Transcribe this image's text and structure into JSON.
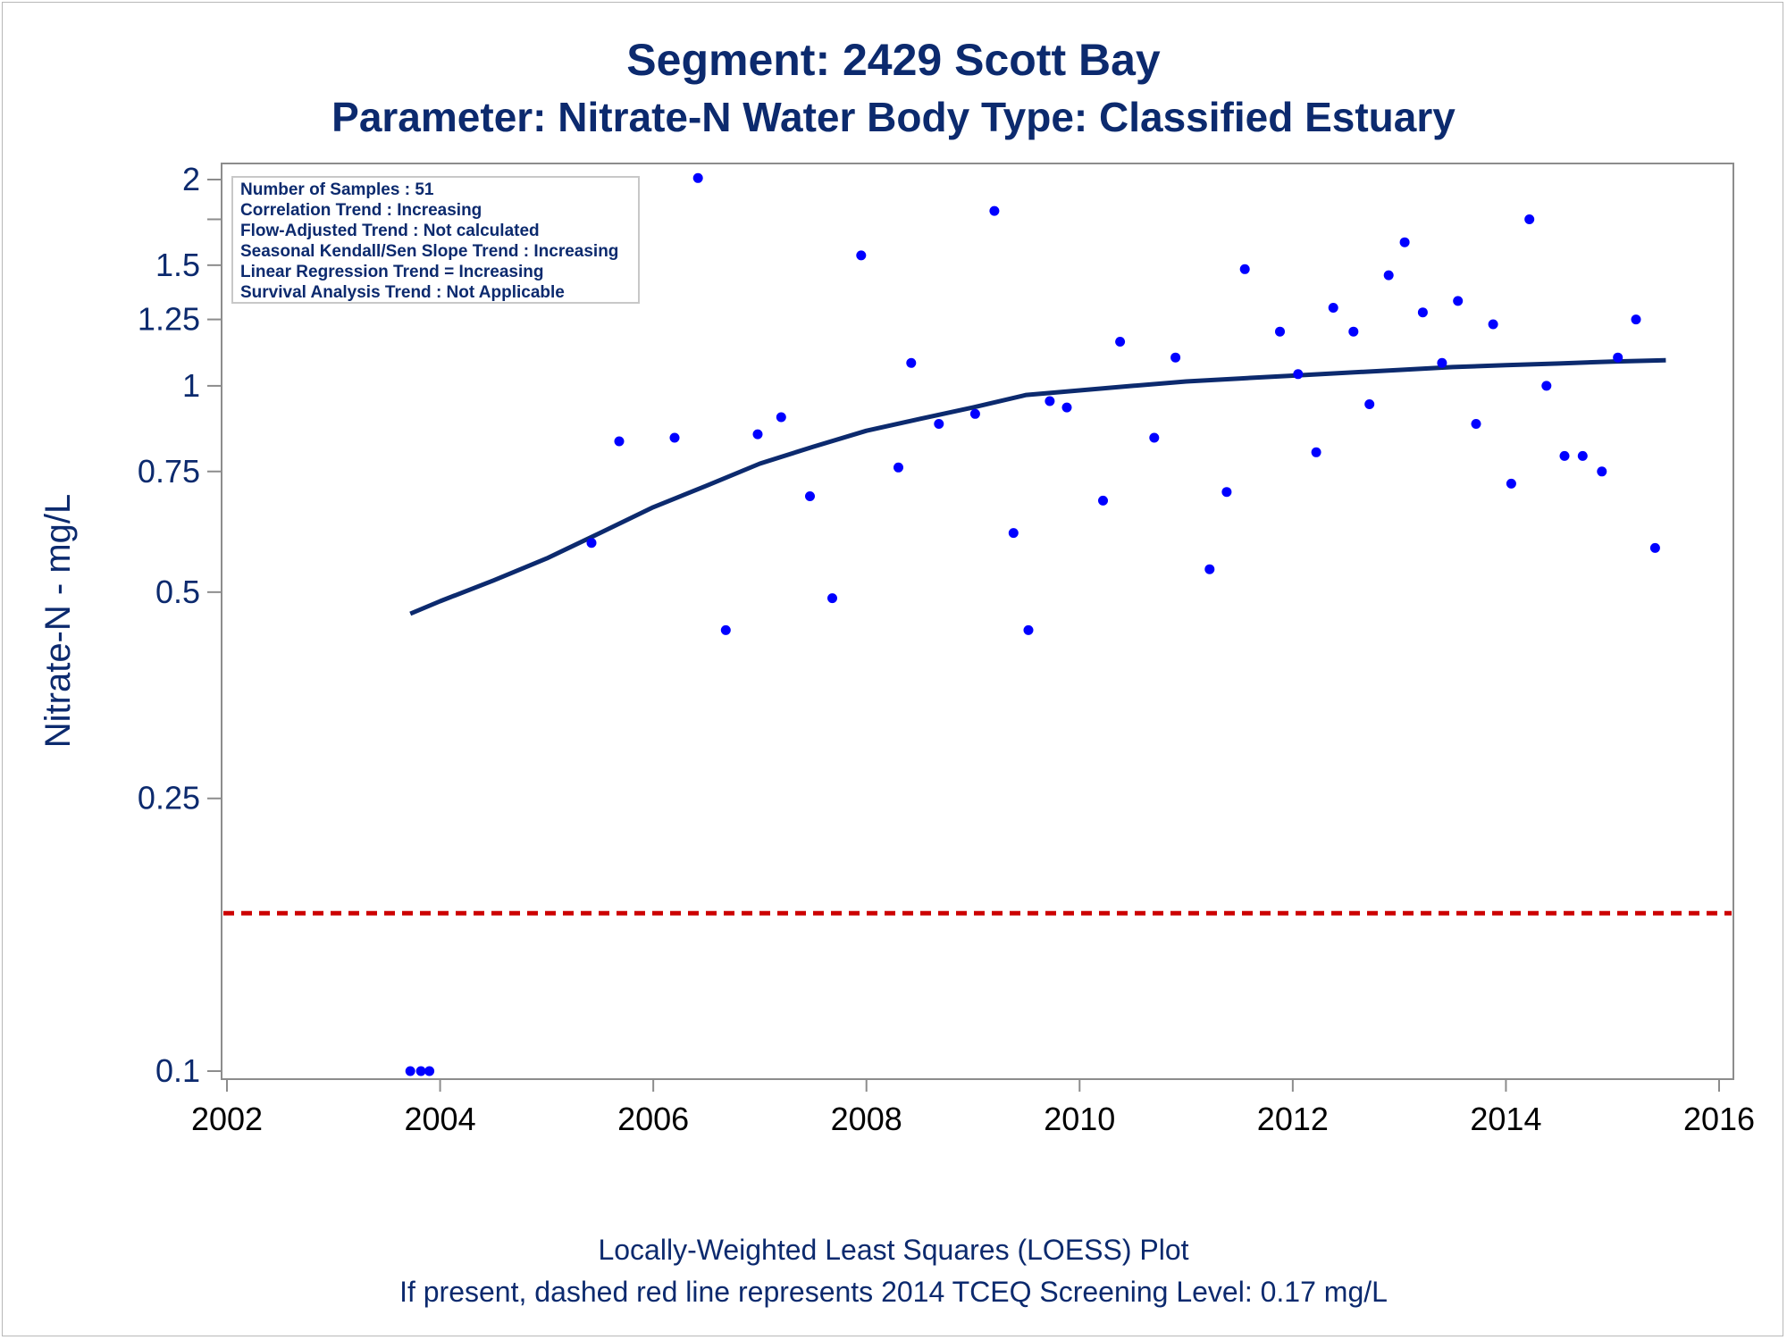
{
  "title": "Segment: 2429  Scott Bay",
  "subtitle": "Parameter: Nitrate-N   Water Body Type: Classified Estuary",
  "footnotes": [
    "Locally-Weighted Least Squares (LOESS) Plot",
    "If present, dashed red line represents 2014 TCEQ Screening Level: 0.17 mg/L"
  ],
  "info_box": [
    "Number of Samples : 51",
    "Correlation Trend : Increasing",
    "Flow-Adjusted Trend : Not calculated",
    "Seasonal Kendall/Sen Slope Trend : Increasing",
    "Linear Regression Trend = Increasing",
    "Survival Analysis Trend : Not Applicable"
  ],
  "colors": {
    "points": "#0000ff",
    "loess": "#0c2a6e",
    "screening_line": "#cc0000",
    "text": "#0c2a6e",
    "axis": "#8c8c8c"
  },
  "chart_data": {
    "type": "scatter",
    "title": "Segment: 2429  Scott Bay",
    "subtitle": "Parameter: Nitrate-N   Water Body Type: Classified Estuary",
    "ylabel": "Nitrate-N - mg/L",
    "xlabel": "",
    "y_scale": "log",
    "xlim": [
      2001.8,
      2016.0
    ],
    "ylim": [
      0.097,
      2.05
    ],
    "x_ticks": [
      2002,
      2004,
      2006,
      2008,
      2010,
      2012,
      2014,
      2016
    ],
    "y_ticks": [
      0.1,
      0.25,
      0.5,
      0.75,
      1,
      1.25,
      1.5,
      2
    ],
    "y_tick_labels": [
      "0.1",
      "0.25",
      "0.5",
      "0.75",
      "1",
      "1.25",
      "1.5",
      "2"
    ],
    "y_minor_ticks": [
      1.75
    ],
    "grid": false,
    "legend": "top-left info box",
    "samples": [
      [
        2003.72,
        0.1
      ],
      [
        2003.82,
        0.1
      ],
      [
        2003.9,
        0.1
      ],
      [
        2005.42,
        0.59
      ],
      [
        2005.68,
        0.83
      ],
      [
        2006.2,
        0.84
      ],
      [
        2006.42,
        2.01
      ],
      [
        2006.68,
        0.44
      ],
      [
        2006.98,
        0.85
      ],
      [
        2007.2,
        0.9
      ],
      [
        2007.47,
        0.69
      ],
      [
        2007.68,
        0.49
      ],
      [
        2007.95,
        1.55
      ],
      [
        2008.3,
        0.76
      ],
      [
        2008.42,
        1.08
      ],
      [
        2008.68,
        0.88
      ],
      [
        2009.02,
        0.91
      ],
      [
        2009.2,
        1.8
      ],
      [
        2009.38,
        0.61
      ],
      [
        2009.52,
        0.44
      ],
      [
        2009.72,
        0.95
      ],
      [
        2009.88,
        0.93
      ],
      [
        2010.22,
        0.68
      ],
      [
        2010.38,
        1.16
      ],
      [
        2010.7,
        0.84
      ],
      [
        2010.9,
        1.1
      ],
      [
        2011.22,
        0.54
      ],
      [
        2011.38,
        0.7
      ],
      [
        2011.55,
        1.48
      ],
      [
        2011.88,
        1.2
      ],
      [
        2012.05,
        1.04
      ],
      [
        2012.22,
        0.8
      ],
      [
        2012.38,
        1.3
      ],
      [
        2012.57,
        1.2
      ],
      [
        2012.72,
        0.94
      ],
      [
        2012.9,
        1.45
      ],
      [
        2013.05,
        1.62
      ],
      [
        2013.22,
        1.28
      ],
      [
        2013.4,
        1.08
      ],
      [
        2013.55,
        1.33
      ],
      [
        2013.72,
        0.88
      ],
      [
        2013.88,
        1.23
      ],
      [
        2014.05,
        0.72
      ],
      [
        2014.22,
        1.75
      ],
      [
        2014.38,
        1.0
      ],
      [
        2014.55,
        0.79
      ],
      [
        2014.72,
        0.79
      ],
      [
        2014.9,
        0.75
      ],
      [
        2015.05,
        1.1
      ],
      [
        2015.22,
        1.25
      ],
      [
        2015.4,
        0.58
      ]
    ],
    "loess_curve": [
      [
        2003.72,
        0.465
      ],
      [
        2004.0,
        0.485
      ],
      [
        2004.5,
        0.52
      ],
      [
        2005.0,
        0.56
      ],
      [
        2005.5,
        0.61
      ],
      [
        2006.0,
        0.665
      ],
      [
        2006.5,
        0.715
      ],
      [
        2007.0,
        0.77
      ],
      [
        2007.5,
        0.815
      ],
      [
        2008.0,
        0.86
      ],
      [
        2008.5,
        0.895
      ],
      [
        2009.0,
        0.93
      ],
      [
        2009.5,
        0.97
      ],
      [
        2010.0,
        0.985
      ],
      [
        2010.5,
        1.0
      ],
      [
        2011.0,
        1.015
      ],
      [
        2011.5,
        1.025
      ],
      [
        2012.0,
        1.035
      ],
      [
        2012.5,
        1.045
      ],
      [
        2013.0,
        1.055
      ],
      [
        2013.5,
        1.065
      ],
      [
        2014.0,
        1.072
      ],
      [
        2014.5,
        1.078
      ],
      [
        2015.0,
        1.085
      ],
      [
        2015.5,
        1.09
      ]
    ],
    "screening_level": 0.17
  }
}
